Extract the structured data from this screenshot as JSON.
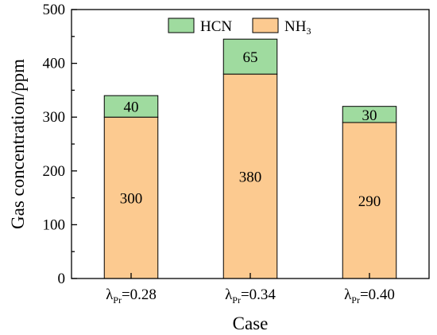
{
  "chart_data": {
    "type": "bar",
    "stacked": true,
    "categories": [
      {
        "symbol": "λ",
        "subscript": "Pr",
        "value_text": "=0.28"
      },
      {
        "symbol": "λ",
        "subscript": "Pr",
        "value_text": "=0.34"
      },
      {
        "symbol": "λ",
        "subscript": "Pr",
        "value_text": "=0.40"
      }
    ],
    "series": [
      {
        "name": "NH",
        "name_subscript": "3",
        "color": "#fcca90",
        "values": [
          300,
          380,
          290
        ],
        "labels": [
          "300",
          "380",
          "290"
        ]
      },
      {
        "name": "HCN",
        "color": "#9fdb9f",
        "values": [
          40,
          65,
          30
        ],
        "labels": [
          "40",
          "65",
          "30"
        ]
      }
    ],
    "title": "",
    "xlabel": "Case",
    "ylabel": "Gas concentration/ppm",
    "ylim": [
      0,
      500
    ],
    "yticks": [
      "0",
      "100",
      "200",
      "300",
      "400",
      "500"
    ],
    "grid": false,
    "legend_position": "top-center"
  }
}
